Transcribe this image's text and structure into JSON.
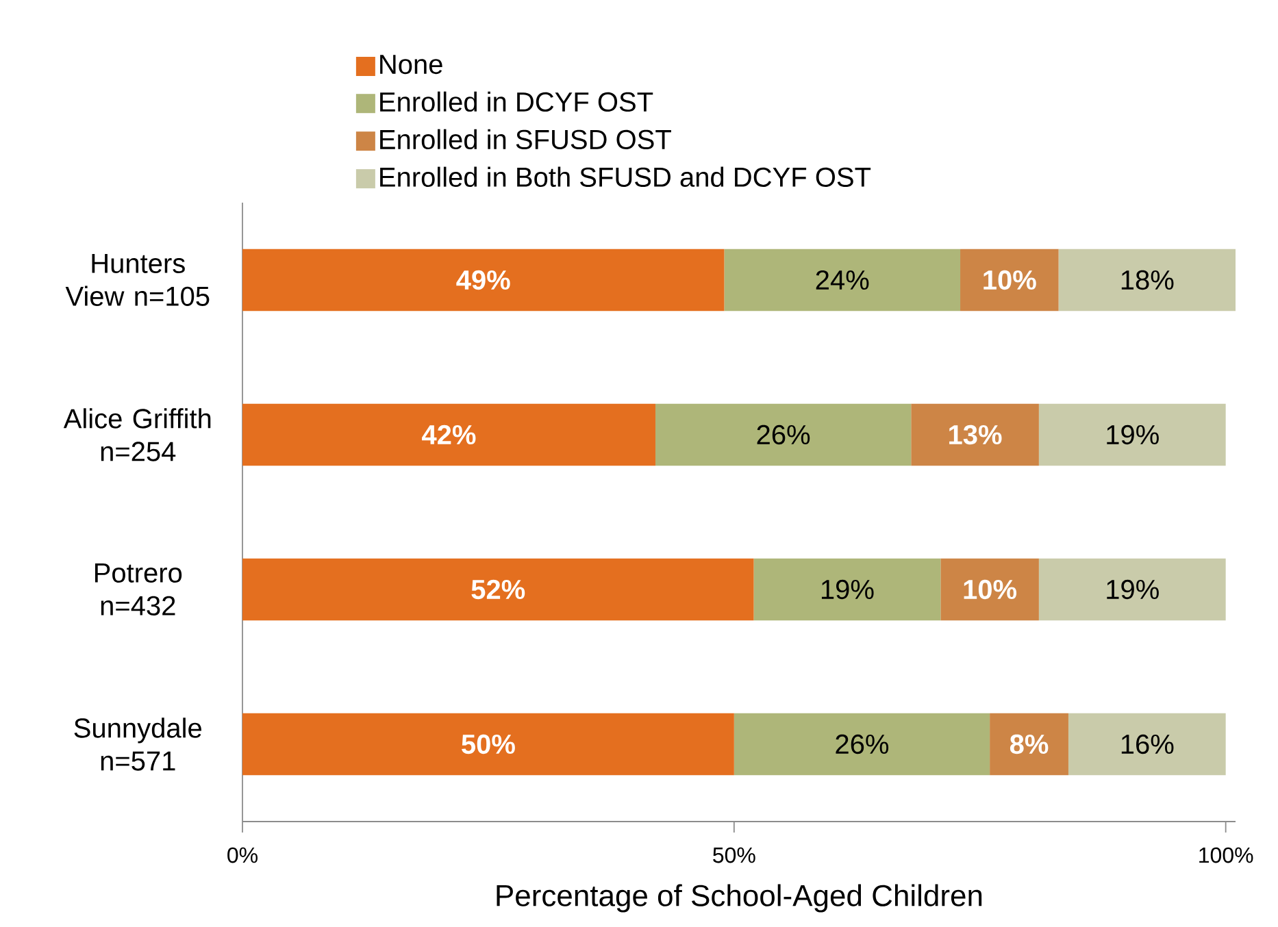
{
  "chart_data": {
    "type": "bar",
    "orientation": "horizontal",
    "stacked": true,
    "xlabel": "Percentage of School-Aged Children",
    "categories": [
      "Hunters View n=105",
      "Alice Griffith n=254",
      "Potrero n=432",
      "Sunnydale n=571"
    ],
    "series": [
      {
        "name": "None",
        "color": "#e46f1f",
        "values": [
          49,
          42,
          52,
          50
        ],
        "value_labels": [
          "49%",
          "42%",
          "52%",
          "50%"
        ]
      },
      {
        "name": "Enrolled in DCYF OST",
        "color": "#aeb679",
        "values": [
          24,
          26,
          19,
          26
        ],
        "value_labels": [
          "24%",
          "26%",
          "19%",
          "26%"
        ]
      },
      {
        "name": "Enrolled in SFUSD OST",
        "color": "#cd8546",
        "values": [
          10,
          13,
          10,
          8
        ],
        "value_labels": [
          "10%",
          "13%",
          "10%",
          "8%"
        ]
      },
      {
        "name": "Enrolled in Both SFUSD and DCYF OST",
        "color": "#c9cbaa",
        "values": [
          18,
          19,
          19,
          16
        ],
        "value_labels": [
          "18%",
          "19%",
          "19%",
          "16%"
        ]
      }
    ],
    "xlim": [
      0,
      101
    ],
    "xticks": [
      {
        "value": 0,
        "label": "0%"
      },
      {
        "value": 50,
        "label": "50%"
      },
      {
        "value": 100,
        "label": "100%"
      }
    ],
    "legend": "top"
  }
}
